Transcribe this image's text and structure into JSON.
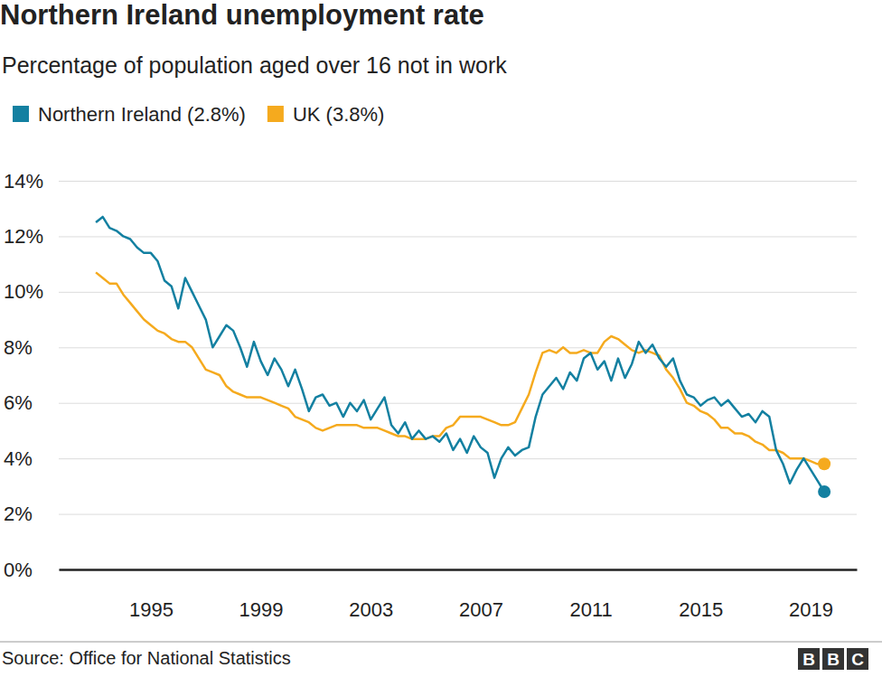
{
  "chart_data": {
    "type": "line",
    "title": "Northern Ireland unemployment rate",
    "subtitle": "Percentage of population aged over 16 not in work",
    "source": "Source: Office for National Statistics",
    "credit": "BBC",
    "legend": "top-left",
    "grid": true,
    "xlim": [
      1991.65,
      2020.68
    ],
    "xticks": [
      1995,
      1999,
      2003,
      2007,
      2011,
      2015,
      2019
    ],
    "ylim": [
      0,
      14
    ],
    "yticks": [
      {
        "value": 0,
        "label": "0%"
      },
      {
        "value": 2,
        "label": "2%"
      },
      {
        "value": 4,
        "label": "4%"
      },
      {
        "value": 6,
        "label": "6%"
      },
      {
        "value": 8,
        "label": "8%"
      },
      {
        "value": 10,
        "label": "10%"
      },
      {
        "value": 12,
        "label": "12%"
      },
      {
        "value": 14,
        "label": "14%"
      }
    ],
    "x": [
      1993,
      1993.25,
      1993.5,
      1993.75,
      1994,
      1994.25,
      1994.5,
      1994.75,
      1995,
      1995.25,
      1995.5,
      1995.75,
      1996,
      1996.25,
      1996.5,
      1996.75,
      1997,
      1997.25,
      1997.5,
      1997.75,
      1998,
      1998.25,
      1998.5,
      1998.75,
      1999,
      1999.25,
      1999.5,
      1999.75,
      2000,
      2000.25,
      2000.5,
      2000.75,
      2001,
      2001.25,
      2001.5,
      2001.75,
      2002,
      2002.25,
      2002.5,
      2002.75,
      2003,
      2003.25,
      2003.5,
      2003.75,
      2004,
      2004.25,
      2004.5,
      2004.75,
      2005,
      2005.25,
      2005.5,
      2005.75,
      2006,
      2006.25,
      2006.5,
      2006.75,
      2007,
      2007.25,
      2007.5,
      2007.75,
      2008,
      2008.25,
      2008.5,
      2008.75,
      2009,
      2009.25,
      2009.5,
      2009.75,
      2010,
      2010.25,
      2010.5,
      2010.75,
      2011,
      2011.25,
      2011.5,
      2011.75,
      2012,
      2012.25,
      2012.5,
      2012.75,
      2013,
      2013.25,
      2013.5,
      2013.75,
      2014,
      2014.25,
      2014.5,
      2014.75,
      2015,
      2015.25,
      2015.5,
      2015.75,
      2016,
      2016.25,
      2016.5,
      2016.75,
      2017,
      2017.25,
      2017.5,
      2017.75,
      2018,
      2018.25,
      2018.5,
      2018.75,
      2019,
      2019.25,
      2019.5
    ],
    "series": [
      {
        "name": "Northern Ireland (2.8%)",
        "color": "#1380a1",
        "values": [
          12.5,
          12.7,
          12.3,
          12.2,
          12,
          11.9,
          11.6,
          11.4,
          11.4,
          11.1,
          10.4,
          10.2,
          9.4,
          10.5,
          10,
          9.5,
          9,
          8,
          8.4,
          8.8,
          8.6,
          8,
          7.3,
          8.2,
          7.5,
          7,
          7.6,
          7.2,
          6.6,
          7.2,
          6.5,
          5.7,
          6.2,
          6.3,
          5.9,
          6,
          5.5,
          6,
          5.7,
          6.1,
          5.4,
          5.8,
          6.2,
          5.2,
          4.9,
          5.3,
          4.7,
          5,
          4.7,
          4.8,
          4.6,
          4.9,
          4.3,
          4.7,
          4.2,
          4.8,
          4.4,
          4.2,
          3.3,
          4,
          4.4,
          4.1,
          4.3,
          4.4,
          5.5,
          6.3,
          6.6,
          6.9,
          6.5,
          7.1,
          6.8,
          7.6,
          7.8,
          7.2,
          7.5,
          6.8,
          7.6,
          6.9,
          7.4,
          8.2,
          7.8,
          8.1,
          7.6,
          7.3,
          7.6,
          6.8,
          6.3,
          6.2,
          5.9,
          6.1,
          6.2,
          5.9,
          6.1,
          5.8,
          5.5,
          5.6,
          5.3,
          5.7,
          5.5,
          4.3,
          3.8,
          3.1,
          3.6,
          4,
          3.6,
          3.2,
          2.8
        ]
      },
      {
        "name": "UK (3.8%)",
        "color": "#f5aa1e",
        "values": [
          10.7,
          10.5,
          10.3,
          10.3,
          9.9,
          9.6,
          9.3,
          9,
          8.8,
          8.6,
          8.5,
          8.3,
          8.2,
          8.2,
          8,
          7.6,
          7.2,
          7.1,
          7,
          6.6,
          6.4,
          6.3,
          6.2,
          6.2,
          6.2,
          6.1,
          6,
          5.9,
          5.8,
          5.5,
          5.4,
          5.3,
          5.1,
          5,
          5.1,
          5.2,
          5.2,
          5.2,
          5.2,
          5.1,
          5.1,
          5.1,
          5,
          4.9,
          4.8,
          4.8,
          4.7,
          4.7,
          4.7,
          4.8,
          4.8,
          5.1,
          5.2,
          5.5,
          5.5,
          5.5,
          5.5,
          5.4,
          5.3,
          5.2,
          5.2,
          5.3,
          5.8,
          6.3,
          7.1,
          7.8,
          7.9,
          7.8,
          8,
          7.8,
          7.8,
          7.9,
          7.8,
          7.8,
          8.2,
          8.4,
          8.3,
          8.1,
          7.9,
          7.8,
          7.9,
          7.8,
          7.7,
          7.2,
          6.9,
          6.5,
          6,
          5.9,
          5.7,
          5.6,
          5.4,
          5.1,
          5.1,
          4.9,
          4.9,
          4.8,
          4.6,
          4.5,
          4.3,
          4.3,
          4.2,
          4,
          4,
          4,
          3.9,
          3.8,
          3.8
        ]
      }
    ]
  }
}
